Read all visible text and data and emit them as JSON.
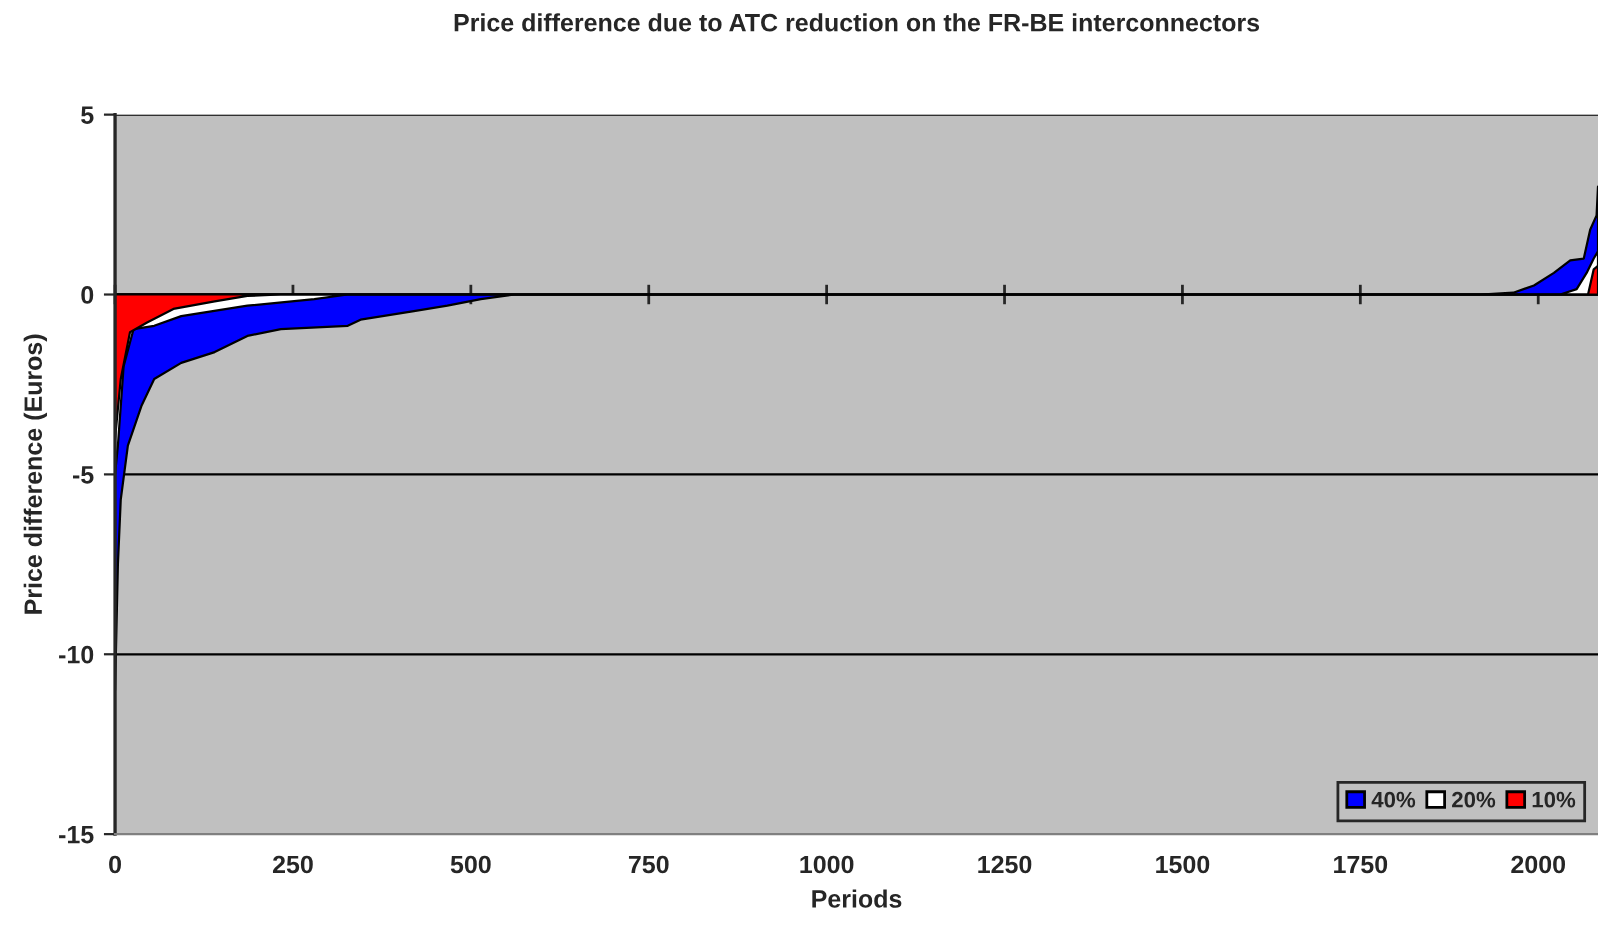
{
  "chart_data": {
    "type": "area",
    "title": "Price difference due to ATC reduction on the FR-BE interconnectors",
    "xlabel": "Periods",
    "ylabel": "Price difference (Euros)",
    "series": [
      {
        "name": "40%",
        "color": "#0000ff",
        "x": [
          0,
          4,
          8,
          18,
          37,
          55,
          93,
          140,
          186,
          233,
          327,
          345,
          420,
          467,
          514,
          561,
          1919,
          1965,
          1994,
          2022,
          2045,
          2064,
          2073,
          2082,
          2084
        ],
        "values": [
          -11,
          -7.5,
          -5.7,
          -4.2,
          -3.1,
          -2.35,
          -1.9,
          -1.6,
          -1.15,
          -0.96,
          -0.87,
          -0.7,
          -0.46,
          -0.31,
          -0.13,
          0,
          0,
          0.05,
          0.25,
          0.6,
          0.95,
          1.0,
          1.8,
          2.2,
          3.0
        ]
      },
      {
        "name": "20%",
        "color": "#ffffff",
        "x": [
          0,
          4,
          12,
          26,
          55,
          93,
          186,
          280,
          327,
          2031,
          2054,
          2068,
          2078,
          2084
        ],
        "values": [
          -5,
          -4.2,
          -2.0,
          -0.96,
          -0.87,
          -0.6,
          -0.31,
          -0.13,
          0,
          0,
          0.15,
          0.6,
          1.0,
          1.2
        ]
      },
      {
        "name": "10%",
        "color": "#ff0000",
        "x": [
          0,
          8,
          21,
          45,
          82,
          140,
          186,
          233,
          2070,
          2078,
          2084
        ],
        "values": [
          -4,
          -2.35,
          -1.05,
          -0.78,
          -0.4,
          -0.19,
          -0.04,
          0,
          0,
          0.7,
          0.8
        ]
      }
    ],
    "xlim": [
      0,
      2084
    ],
    "xticks": [
      0,
      250,
      500,
      750,
      1000,
      1250,
      1500,
      1750,
      2000
    ],
    "ylim": [
      -15,
      5
    ],
    "yticks": [
      -15,
      -10,
      -5,
      0,
      5
    ],
    "grid": "y",
    "legend": "bottom right"
  }
}
